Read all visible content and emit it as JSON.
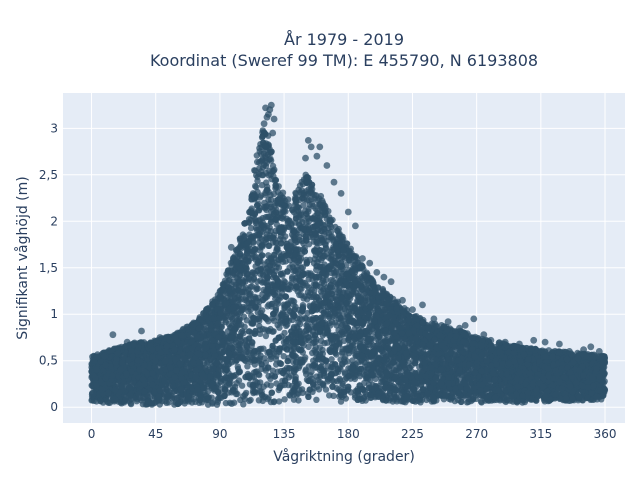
{
  "chart_data": {
    "type": "scatter",
    "title_lines": [
      "År 1979 - 2019",
      "Koordinat (Sweref 99 TM): E 455790, N 6193808"
    ],
    "xlabel": "Vågriktning (grader)",
    "ylabel": "Signifikant våghöjd (m)",
    "xlim": [
      -20,
      374
    ],
    "ylim": [
      -0.17,
      3.38
    ],
    "x_ticks": [
      0,
      45,
      90,
      135,
      180,
      225,
      270,
      315,
      360
    ],
    "x_tick_labels": [
      "0",
      "45",
      "90",
      "135",
      "180",
      "225",
      "270",
      "315",
      "360"
    ],
    "y_ticks": [
      0,
      0.5,
      1,
      1.5,
      2,
      2.5,
      3
    ],
    "y_tick_labels": [
      "0",
      "0,5",
      "1",
      "1,5",
      "2",
      "2,5",
      "3"
    ],
    "grid": true,
    "legend": "none",
    "colors": {
      "marker": "#2e5068",
      "plot_background": "#e5ecf6",
      "grid": "#ffffff",
      "text": "#2a3f5f"
    },
    "series": [
      {
        "upper_envelope": {
          "x": [
            0,
            10,
            20,
            30,
            45,
            60,
            75,
            90,
            100,
            110,
            115,
            120,
            125,
            130,
            140,
            150,
            160,
            170,
            180,
            195,
            210,
            225,
            240,
            255,
            270,
            285,
            300,
            315,
            330,
            345,
            360
          ],
          "y": [
            0.55,
            0.6,
            0.65,
            0.7,
            0.72,
            0.8,
            0.95,
            1.25,
            1.65,
            2.1,
            2.65,
            3.0,
            2.9,
            2.4,
            2.2,
            2.55,
            2.3,
            2.0,
            1.75,
            1.4,
            1.2,
            1.0,
            0.9,
            0.85,
            0.75,
            0.7,
            0.65,
            0.62,
            0.6,
            0.58,
            0.55
          ]
        },
        "lower_envelope": {
          "x": [
            0,
            45,
            90,
            135,
            180,
            225,
            270,
            315,
            360
          ],
          "y": [
            0.05,
            0.02,
            0.02,
            0.05,
            0.05,
            0.05,
            0.05,
            0.05,
            0.08
          ]
        },
        "outliers": {
          "x": [
            122,
            124,
            126,
            128,
            121,
            125,
            127,
            123,
            152,
            154,
            160,
            158,
            165,
            170,
            150,
            175,
            180,
            185,
            190,
            195,
            200,
            205,
            210,
            218,
            225,
            232,
            240,
            250,
            258,
            262,
            268,
            275,
            280,
            290,
            300,
            310,
            318,
            328,
            335,
            345,
            350,
            356,
            358,
            15,
            25,
            35,
            48,
            55,
            98,
            105
          ],
          "y": [
            3.22,
            3.15,
            3.25,
            3.1,
            3.05,
            3.2,
            2.95,
            3.12,
            2.87,
            2.8,
            2.8,
            2.7,
            2.6,
            2.42,
            2.68,
            2.3,
            2.1,
            1.95,
            1.6,
            1.55,
            1.45,
            1.4,
            1.35,
            1.15,
            1.05,
            1.1,
            0.95,
            0.92,
            0.85,
            0.88,
            0.95,
            0.78,
            0.72,
            0.7,
            0.68,
            0.72,
            0.7,
            0.68,
            0.6,
            0.62,
            0.65,
            0.6,
            0.55,
            0.78,
            0.7,
            0.82,
            0.75,
            0.72,
            1.72,
            1.8
          ]
        }
      }
    ]
  }
}
